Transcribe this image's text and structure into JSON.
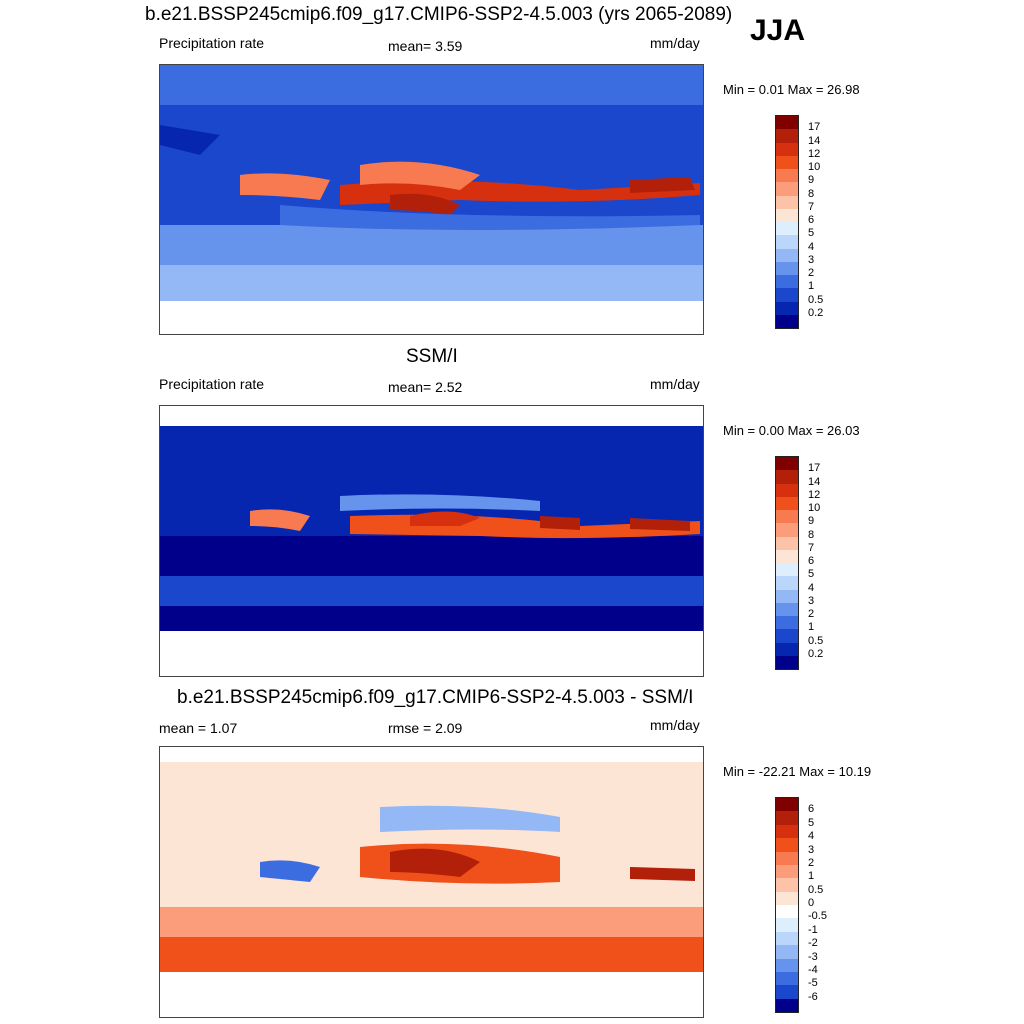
{
  "season": "JJA",
  "panels": [
    {
      "title": "b.e21.BSSP245cmip6.f09_g17.CMIP6-SSP2-4.5.003 (yrs 2065-2089)",
      "left_label": "Precipitation rate",
      "center_label": "mean=   3.59",
      "units": "mm/day",
      "minmax": "Min =   0.01 Max =  26.98",
      "levels": [
        "17",
        "14",
        "12",
        "10",
        "9",
        "8",
        "7",
        "6",
        "5",
        "4",
        "3",
        "2",
        "1",
        "0.5",
        "0.2"
      ],
      "colors": [
        "#800000",
        "#b2200a",
        "#d7300f",
        "#f0501a",
        "#f87a50",
        "#fb9d7a",
        "#fcc3a8",
        "#fde5d6",
        "#ddeefc",
        "#bad6fa",
        "#94b8f5",
        "#6693ec",
        "#3b6de0",
        "#1b47cc",
        "#0626b0",
        "#00008b"
      ]
    },
    {
      "title": "SSM/I",
      "left_label": "Precipitation rate",
      "center_label": "mean=   2.52",
      "units": "mm/day",
      "minmax": "Min =   0.00 Max =  26.03",
      "levels": [
        "17",
        "14",
        "12",
        "10",
        "9",
        "8",
        "7",
        "6",
        "5",
        "4",
        "3",
        "2",
        "1",
        "0.5",
        "0.2"
      ],
      "colors": [
        "#800000",
        "#b2200a",
        "#d7300f",
        "#f0501a",
        "#f87a50",
        "#fb9d7a",
        "#fcc3a8",
        "#fde5d6",
        "#ddeefc",
        "#bad6fa",
        "#94b8f5",
        "#6693ec",
        "#3b6de0",
        "#1b47cc",
        "#0626b0",
        "#00008b"
      ]
    },
    {
      "title": "b.e21.BSSP245cmip6.f09_g17.CMIP6-SSP2-4.5.003 - SSM/I",
      "left_label": "mean =   1.07",
      "center_label": "rmse =   2.09",
      "units": "mm/day",
      "minmax": "Min = -22.21 Max =  10.19",
      "levels": [
        "6",
        "5",
        "4",
        "3",
        "2",
        "1",
        "0.5",
        "0",
        "-0.5",
        "-1",
        "-2",
        "-3",
        "-4",
        "-5",
        "-6"
      ],
      "colors": [
        "#800000",
        "#b2200a",
        "#d7300f",
        "#f0501a",
        "#f87a50",
        "#fb9d7a",
        "#fcc3a8",
        "#fde5d6",
        "#ffffff",
        "#ddeefc",
        "#bad6fa",
        "#94b8f5",
        "#6693ec",
        "#3b6de0",
        "#1b47cc",
        "#00008b"
      ]
    }
  ]
}
